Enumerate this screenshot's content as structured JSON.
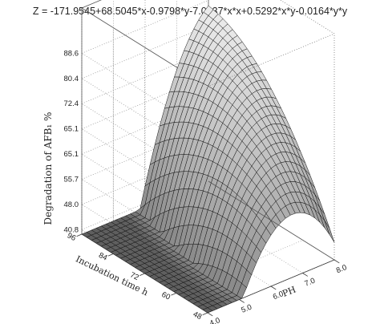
{
  "chart_data": {
    "type": "surface3d",
    "title": "Z = -171.9545+68.5045*x-0.9798*y-7.0337*x*x+0.5292*x*y-0.0164*y*y",
    "xlabel": "PH",
    "ylabel": "Incubation time h",
    "zlabel": "Degradation of AFB₁ %",
    "x_ticks": [
      "4.0",
      "5.0",
      "6.0",
      "7.0",
      "8.0"
    ],
    "y_ticks": [
      "48",
      "60",
      "72",
      "84",
      "96"
    ],
    "z_ticks": [
      "40.8",
      "48.0",
      "55.7",
      "65.1",
      "65.1",
      "72.4",
      "80.4",
      "88.6"
    ],
    "x_range": [
      4.0,
      8.0
    ],
    "y_range": [
      48,
      96
    ],
    "z_range": [
      40.8,
      88.6
    ],
    "coefficients": {
      "b0": -171.9545,
      "bx": 68.5045,
      "by": -0.9798,
      "bxx": -7.0337,
      "bxy": 0.5292,
      "byy": -0.0164
    },
    "grid": true,
    "colormap": "grayscale"
  }
}
